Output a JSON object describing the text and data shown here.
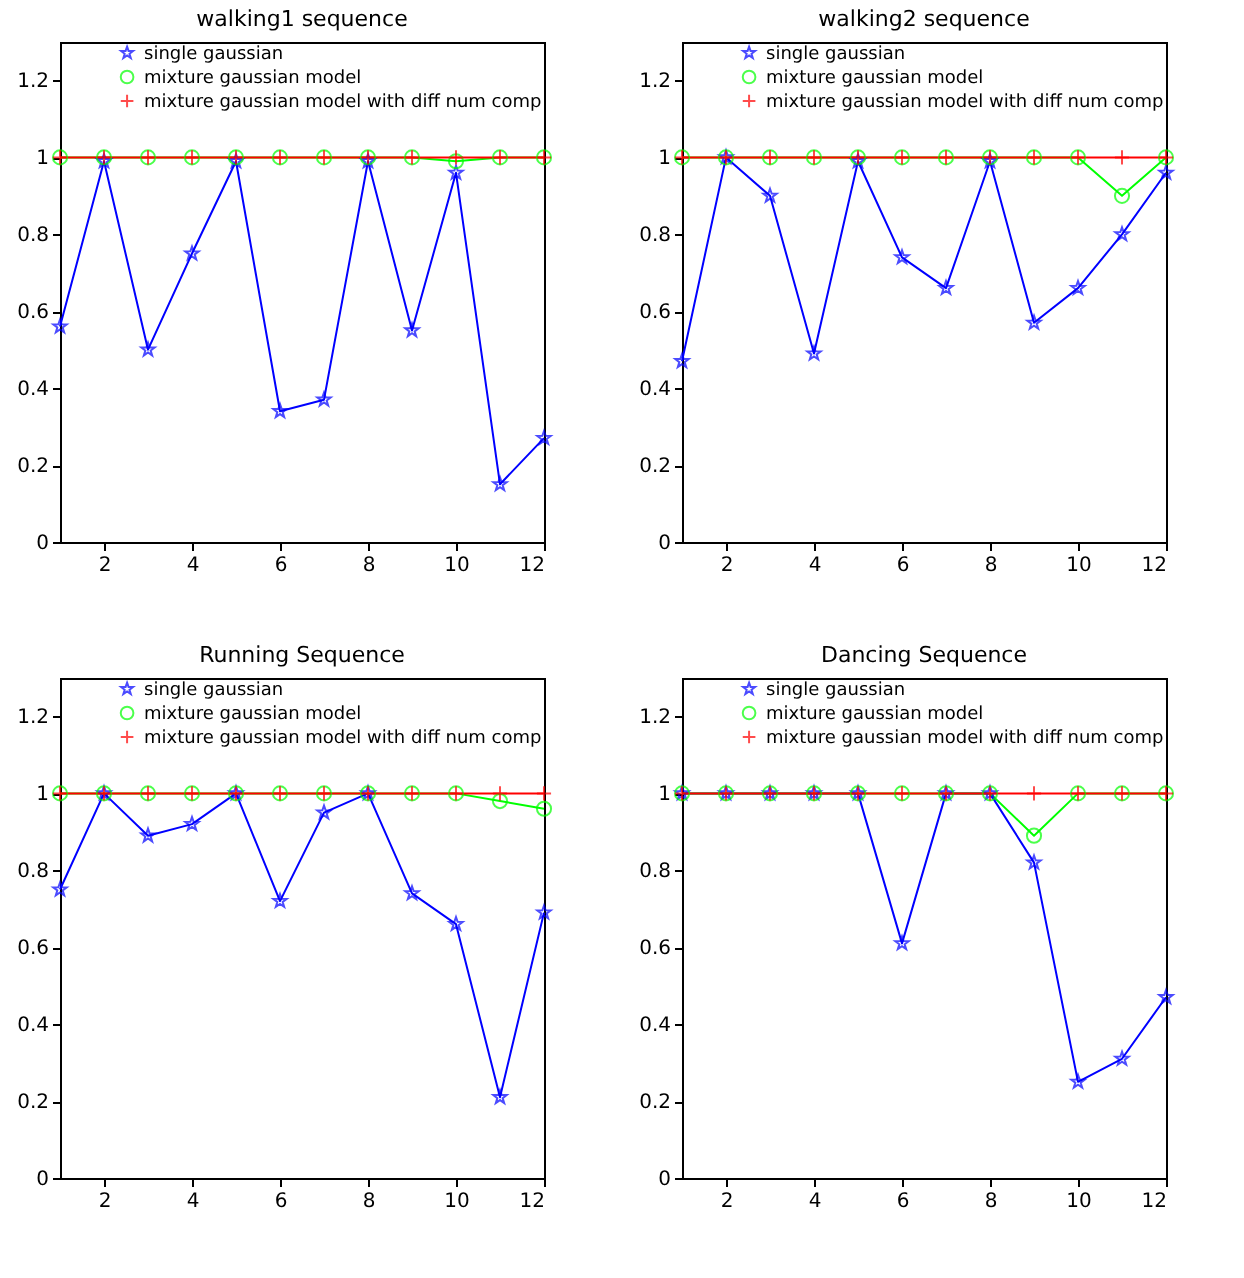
{
  "chart_data": [
    {
      "type": "line",
      "title": "walking1 sequence",
      "x": [
        1,
        2,
        3,
        4,
        5,
        6,
        7,
        8,
        9,
        10,
        11,
        12
      ],
      "xlim": [
        1,
        12
      ],
      "xticks": [
        2,
        4,
        6,
        8,
        10,
        12
      ],
      "ylim": [
        0,
        1.3
      ],
      "yticks": [
        0,
        0.2,
        0.4,
        0.6,
        0.8,
        1,
        1.2
      ],
      "grid": false,
      "legend": "top",
      "line_style": "solid",
      "series": [
        {
          "name": "single gaussian",
          "color": "#0000ff",
          "marker": "star",
          "values": [
            0.56,
            0.99,
            0.5,
            0.75,
            0.99,
            0.34,
            0.37,
            0.99,
            0.55,
            0.96,
            0.15,
            0.27
          ]
        },
        {
          "name": "mixture gaussian model",
          "color": "#00ff00",
          "marker": "circle",
          "values": [
            1,
            1,
            1,
            1,
            1,
            1,
            1,
            1,
            1,
            0.99,
            1,
            1
          ]
        },
        {
          "name": "mixture gaussian model with diff num comp",
          "color": "#ff0000",
          "marker": "cross",
          "values": [
            1,
            1,
            1,
            1,
            1,
            1,
            1,
            1,
            1,
            1,
            1,
            1
          ]
        }
      ]
    },
    {
      "type": "line",
      "title": "walking2 sequence",
      "x": [
        1,
        2,
        3,
        4,
        5,
        6,
        7,
        8,
        9,
        10,
        11,
        12
      ],
      "xlim": [
        1,
        12
      ],
      "xticks": [
        2,
        4,
        6,
        8,
        10,
        12
      ],
      "ylim": [
        0,
        1.3
      ],
      "yticks": [
        0,
        0.2,
        0.4,
        0.6,
        0.8,
        1,
        1.2
      ],
      "grid": false,
      "legend": "top",
      "line_style": "solid",
      "series": [
        {
          "name": "single gaussian",
          "color": "#0000ff",
          "marker": "star",
          "values": [
            0.47,
            1,
            0.9,
            0.49,
            0.99,
            0.74,
            0.66,
            0.99,
            0.57,
            0.66,
            0.8,
            0.96
          ]
        },
        {
          "name": "mixture gaussian model",
          "color": "#00ff00",
          "marker": "circle",
          "values": [
            1,
            1,
            1,
            1,
            1,
            1,
            1,
            1,
            1,
            1,
            0.9,
            1
          ]
        },
        {
          "name": "mixture gaussian model with diff num comp",
          "color": "#ff0000",
          "marker": "cross",
          "values": [
            1,
            1,
            1,
            1,
            1,
            1,
            1,
            1,
            1,
            1,
            1,
            1
          ]
        }
      ]
    },
    {
      "type": "line",
      "title": "Running Sequence",
      "x": [
        1,
        2,
        3,
        4,
        5,
        6,
        7,
        8,
        9,
        10,
        11,
        12
      ],
      "xlim": [
        1,
        12
      ],
      "xticks": [
        2,
        4,
        6,
        8,
        10,
        12
      ],
      "ylim": [
        0,
        1.3
      ],
      "yticks": [
        0,
        0.2,
        0.4,
        0.6,
        0.8,
        1,
        1.2
      ],
      "grid": false,
      "legend": "top",
      "line_style": "solid",
      "series": [
        {
          "name": "single gaussian",
          "color": "#0000ff",
          "marker": "star",
          "values": [
            0.75,
            1,
            0.89,
            0.92,
            1,
            0.72,
            0.95,
            1,
            0.74,
            0.66,
            0.21,
            0.69
          ]
        },
        {
          "name": "mixture gaussian model",
          "color": "#00ff00",
          "marker": "circle",
          "values": [
            1,
            1,
            1,
            1,
            1,
            1,
            1,
            1,
            1,
            1,
            0.98,
            0.96
          ]
        },
        {
          "name": "mixture gaussian model with diff num comp",
          "color": "#ff0000",
          "marker": "cross",
          "values": [
            1,
            1,
            1,
            1,
            1,
            1,
            1,
            1,
            1,
            1,
            1,
            1
          ]
        }
      ]
    },
    {
      "type": "line",
      "title": "Dancing Sequence",
      "x": [
        1,
        2,
        3,
        4,
        5,
        6,
        7,
        8,
        9,
        10,
        11,
        12
      ],
      "xlim": [
        1,
        12
      ],
      "xticks": [
        2,
        4,
        6,
        8,
        10,
        12
      ],
      "ylim": [
        0,
        1.3
      ],
      "yticks": [
        0,
        0.2,
        0.4,
        0.6,
        0.8,
        1,
        1.2
      ],
      "grid": false,
      "legend": "top",
      "line_style": "solid",
      "series": [
        {
          "name": "single gaussian",
          "color": "#0000ff",
          "marker": "star",
          "values": [
            1,
            1,
            1,
            1,
            1,
            0.61,
            1,
            1,
            0.82,
            0.25,
            0.31,
            0.47
          ]
        },
        {
          "name": "mixture gaussian model",
          "color": "#00ff00",
          "marker": "circle",
          "values": [
            1,
            1,
            1,
            1,
            1,
            1,
            1,
            1,
            0.89,
            1,
            1,
            1
          ]
        },
        {
          "name": "mixture gaussian model with diff num comp",
          "color": "#ff0000",
          "marker": "cross",
          "values": [
            1,
            1,
            1,
            1,
            1,
            1,
            1,
            1,
            1,
            1,
            1,
            1
          ]
        }
      ]
    }
  ]
}
